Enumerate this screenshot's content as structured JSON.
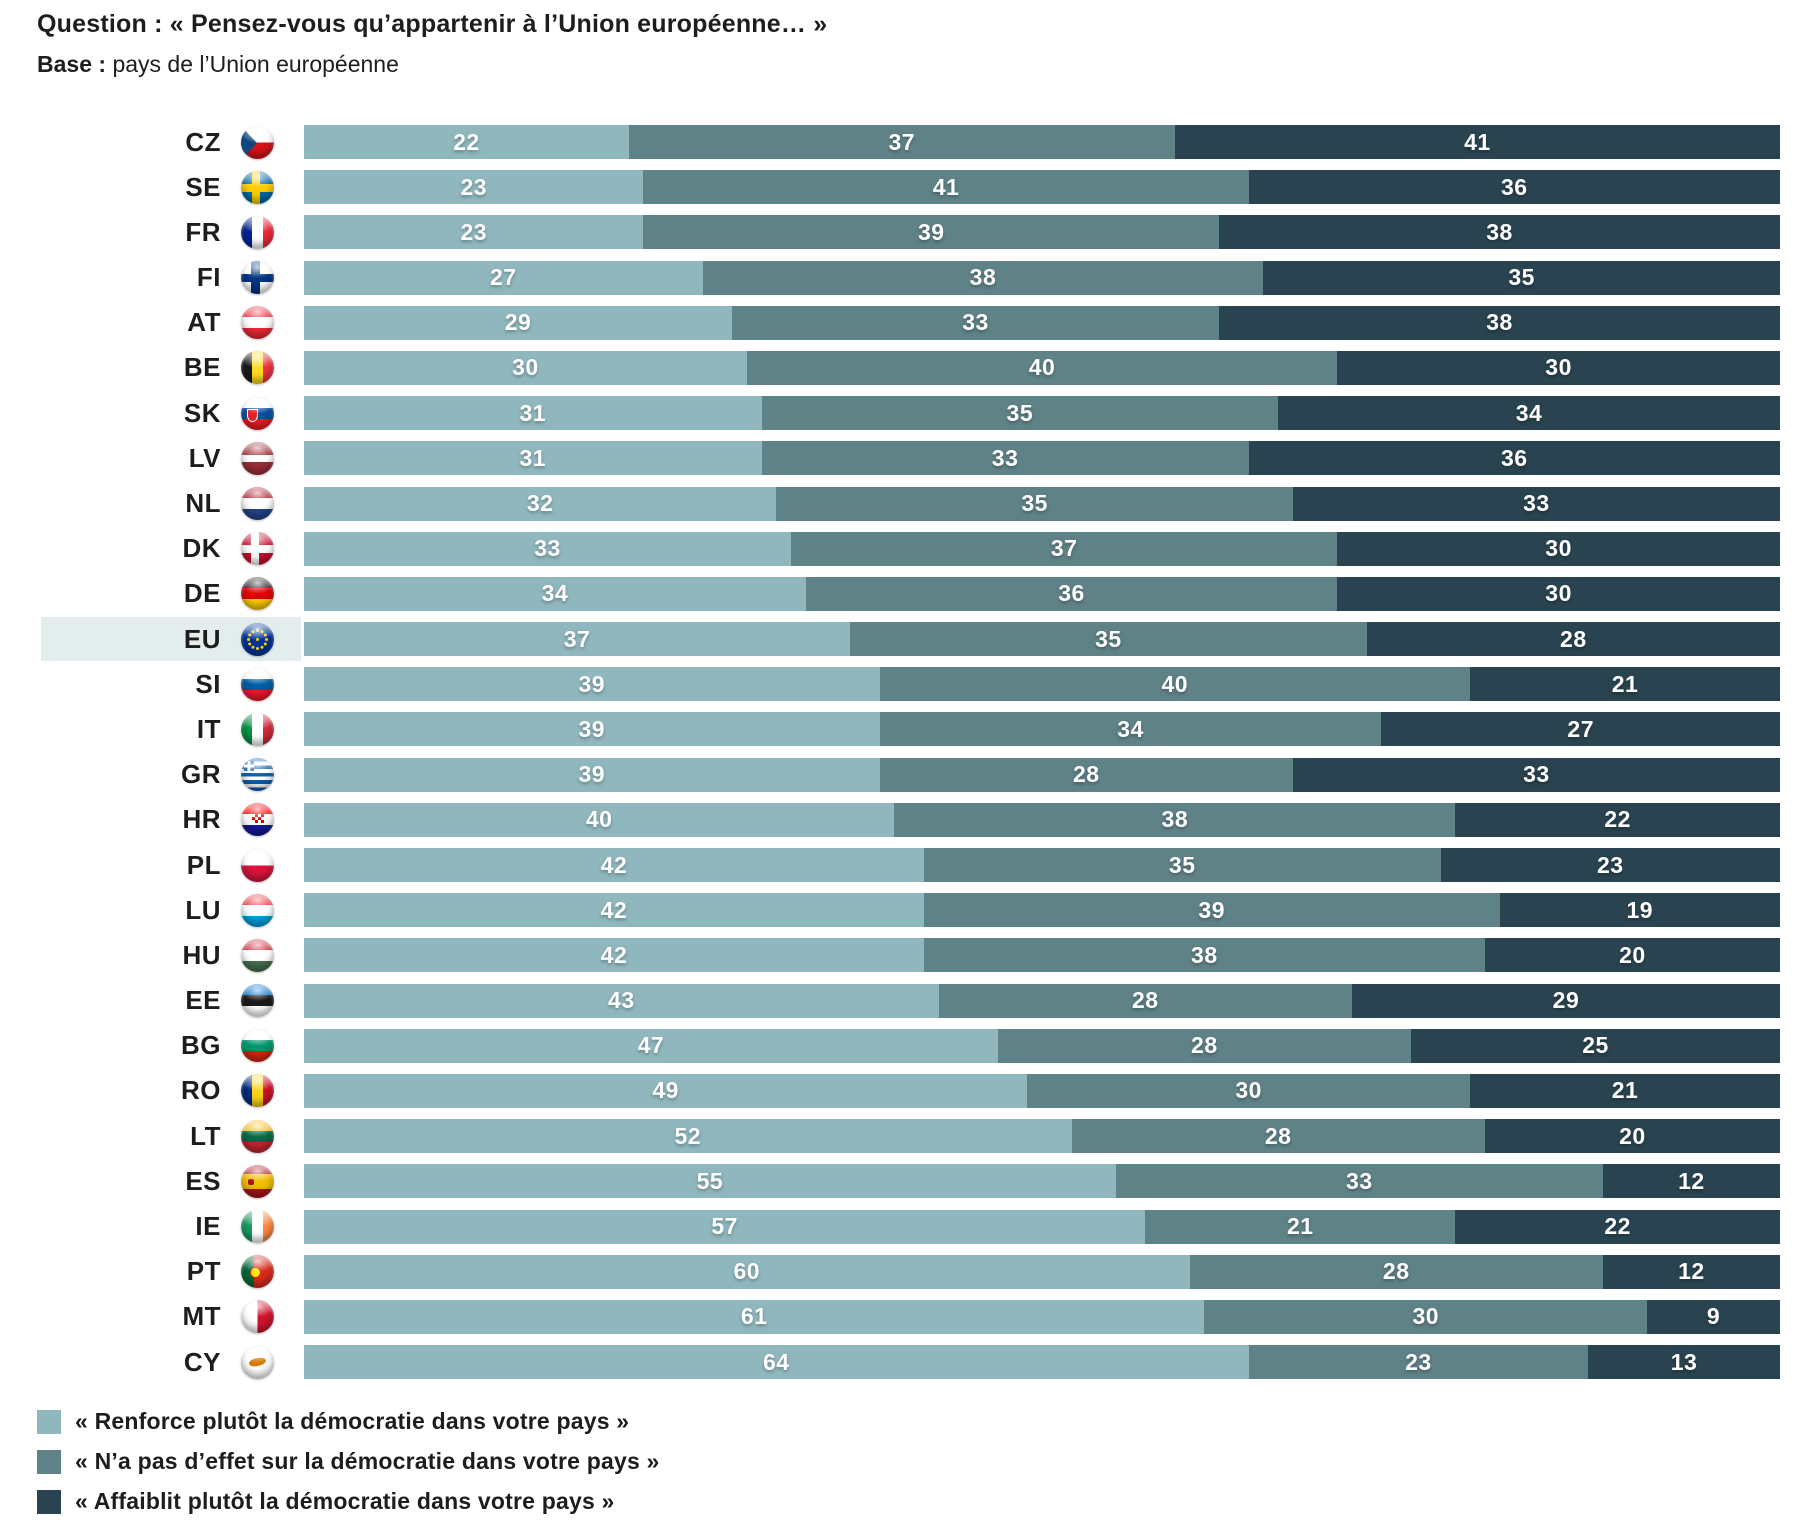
{
  "title": {
    "prefix": "Question :",
    "text": "« Pensez-vous qu’appartenir à l’Union européenne… »"
  },
  "base": {
    "prefix": "Base :",
    "text": "pays de l’Union européenne"
  },
  "colors": {
    "segments": [
      "#8FB7BD",
      "#5F8287",
      "#294450"
    ],
    "highlight_bg": "#E3EDEE",
    "value_text": "#FFFFFF",
    "label_text": "#1D1D1B"
  },
  "legend": [
    {
      "label": "« Renforce plutôt la démocratie dans votre pays »",
      "color": "#8FB7BD"
    },
    {
      "label": "« N’a pas d’effet sur la démocratie dans votre pays »",
      "color": "#5F8287"
    },
    {
      "label": "« Affaiblit plutôt la démocratie dans votre pays »",
      "color": "#294450"
    }
  ],
  "chart_data": {
    "type": "bar",
    "orientation": "horizontal",
    "stacked": true,
    "unit": "percent",
    "xlim": [
      0,
      100
    ],
    "highlight_row": "EU",
    "series_names": [
      "« Renforce plutôt la démocratie dans votre pays »",
      "« N’a pas d’effet sur la démocratie dans votre pays »",
      "« Affaiblit plutôt la démocratie dans votre pays »"
    ],
    "rows": [
      {
        "code": "CZ",
        "values": [
          22,
          37,
          41
        ]
      },
      {
        "code": "SE",
        "values": [
          23,
          41,
          36
        ]
      },
      {
        "code": "FR",
        "values": [
          23,
          39,
          38
        ]
      },
      {
        "code": "FI",
        "values": [
          27,
          38,
          35
        ]
      },
      {
        "code": "AT",
        "values": [
          29,
          33,
          38
        ]
      },
      {
        "code": "BE",
        "values": [
          30,
          40,
          30
        ]
      },
      {
        "code": "SK",
        "values": [
          31,
          35,
          34
        ]
      },
      {
        "code": "LV",
        "values": [
          31,
          33,
          36
        ]
      },
      {
        "code": "NL",
        "values": [
          32,
          35,
          33
        ]
      },
      {
        "code": "DK",
        "values": [
          33,
          37,
          30
        ]
      },
      {
        "code": "DE",
        "values": [
          34,
          36,
          30
        ]
      },
      {
        "code": "EU",
        "values": [
          37,
          35,
          28
        ]
      },
      {
        "code": "SI",
        "values": [
          39,
          40,
          21
        ]
      },
      {
        "code": "IT",
        "values": [
          39,
          34,
          27
        ]
      },
      {
        "code": "GR",
        "values": [
          39,
          28,
          33
        ]
      },
      {
        "code": "HR",
        "values": [
          40,
          38,
          22
        ]
      },
      {
        "code": "PL",
        "values": [
          42,
          35,
          23
        ]
      },
      {
        "code": "LU",
        "values": [
          42,
          39,
          19
        ]
      },
      {
        "code": "HU",
        "values": [
          42,
          38,
          20
        ]
      },
      {
        "code": "EE",
        "values": [
          43,
          28,
          29
        ]
      },
      {
        "code": "BG",
        "values": [
          47,
          28,
          25
        ]
      },
      {
        "code": "RO",
        "values": [
          49,
          30,
          21
        ]
      },
      {
        "code": "LT",
        "values": [
          52,
          28,
          20
        ]
      },
      {
        "code": "ES",
        "values": [
          55,
          33,
          12
        ]
      },
      {
        "code": "IE",
        "values": [
          57,
          21,
          22
        ]
      },
      {
        "code": "PT",
        "values": [
          60,
          28,
          12
        ]
      },
      {
        "code": "MT",
        "values": [
          61,
          30,
          9
        ]
      },
      {
        "code": "CY",
        "values": [
          64,
          23,
          13
        ]
      }
    ]
  }
}
